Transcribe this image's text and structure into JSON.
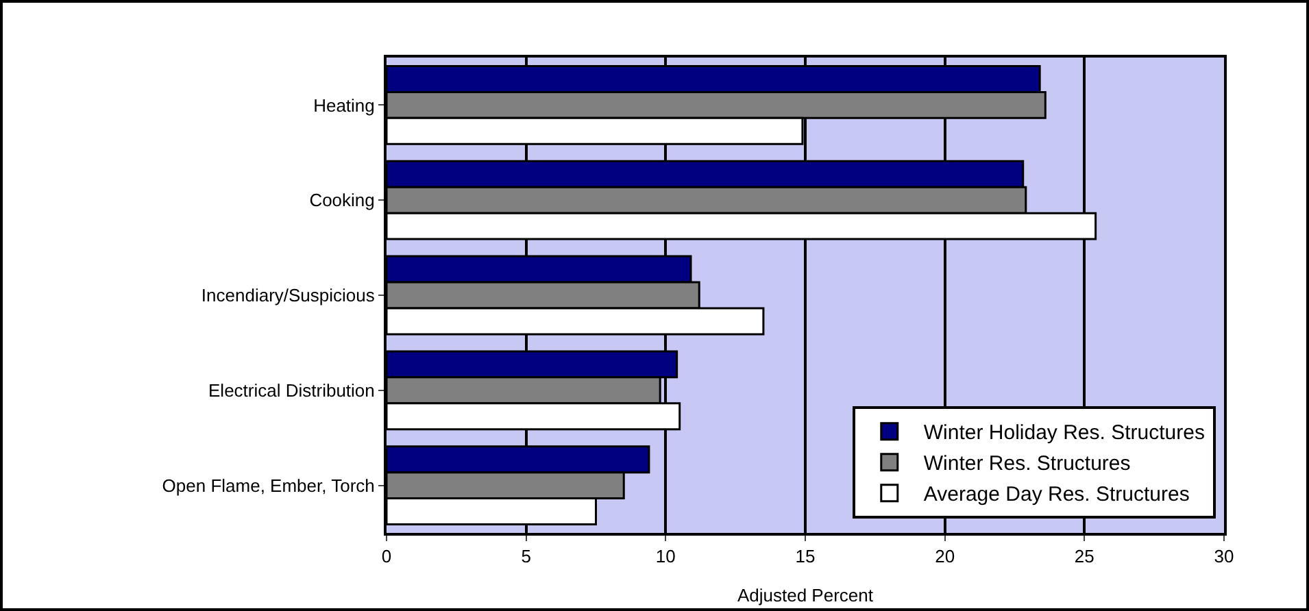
{
  "chart_data": {
    "type": "bar",
    "orientation": "horizontal",
    "xlabel": "Adjusted Percent",
    "categories": [
      "Heating",
      "Cooking",
      "Incendiary/Suspicious",
      "Electrical Distribution",
      "Open Flame, Ember, Torch"
    ],
    "series": [
      {
        "name": "Winter Holiday Res. Structures",
        "color": "#000080",
        "values": [
          23.4,
          22.8,
          10.9,
          10.4,
          9.4
        ]
      },
      {
        "name": "Winter Res. Structures",
        "color": "#808080",
        "values": [
          23.6,
          22.9,
          11.2,
          9.8,
          8.5
        ]
      },
      {
        "name": "Average Day Res. Structures",
        "color": "#ffffff",
        "values": [
          14.9,
          25.4,
          13.5,
          10.5,
          7.5
        ]
      }
    ],
    "xlim": [
      0,
      30
    ],
    "xticks": [
      0,
      5,
      10,
      15,
      20,
      25,
      30
    ],
    "grid": "x",
    "legend": "bottom right"
  }
}
